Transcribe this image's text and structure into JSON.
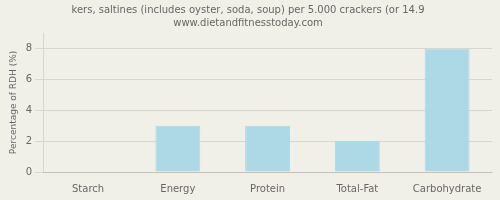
{
  "chart_data": {
    "type": "bar",
    "title": "kers, saltines (includes oyster, soda, soup) per 5.000 crackers (or 14.9",
    "subtitle": "www.dietandfitnesstoday.com",
    "categories": [
      "Starch",
      "Energy",
      "Protein",
      "Total-Fat",
      "Carbohydrate"
    ],
    "values": [
      0.0,
      3.0,
      3.0,
      2.0,
      8.0
    ],
    "color": "#add8e6",
    "ylabel": "Percentage of RDH (%)",
    "ylim": [
      0,
      9
    ],
    "yticks": [
      0,
      2,
      4,
      6,
      8
    ],
    "grid": true
  }
}
